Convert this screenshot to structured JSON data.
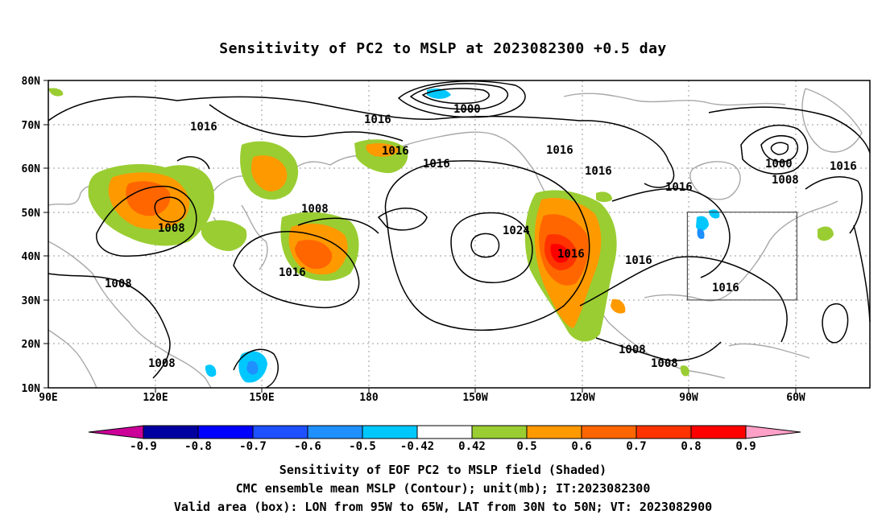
{
  "title": "Sensitivity of PC2 to MSLP at 2023082300 +0.5 day",
  "map": {
    "lat_ticks": [
      "80N",
      "70N",
      "60N",
      "50N",
      "40N",
      "30N",
      "20N",
      "10N"
    ],
    "lon_ticks": [
      "90E",
      "120E",
      "150E",
      "180",
      "150W",
      "120W",
      "90W",
      "60W"
    ],
    "contour_labels": {
      "c1016": "1016",
      "c1008": "1008",
      "c1000": "1000",
      "c1024": "1024"
    },
    "colors": {
      "coast": "#a8a8a8",
      "contour": "#000000",
      "grid": "#9a9a9a"
    },
    "valid_box": {
      "lon_min": -95,
      "lon_max": -65,
      "lat_min": 30,
      "lat_max": 50
    }
  },
  "colorbar": {
    "labels": [
      "-0.9",
      "-0.8",
      "-0.7",
      "-0.6",
      "-0.5",
      "-0.42",
      "0.42",
      "0.5",
      "0.6",
      "0.7",
      "0.8",
      "0.9"
    ],
    "colors": [
      "#0000a0",
      "#0000ff",
      "#1e50ff",
      "#1e90ff",
      "#00c8ff",
      "#ffffff",
      "#9acd32",
      "#ff9900",
      "#ff6600",
      "#ff3300",
      "#ff0000"
    ],
    "low_end": "#cc0099",
    "high_end": "#ffa0c8"
  },
  "captions": [
    "Sensitivity of EOF PC2 to MSLP field (Shaded)",
    "CMC ensemble mean MSLP (Contour); unit(mb); IT:2023082300",
    "Valid area (box): LON from 95W to 65W, LAT from 30N to 50N; VT: 2023082900"
  ]
}
